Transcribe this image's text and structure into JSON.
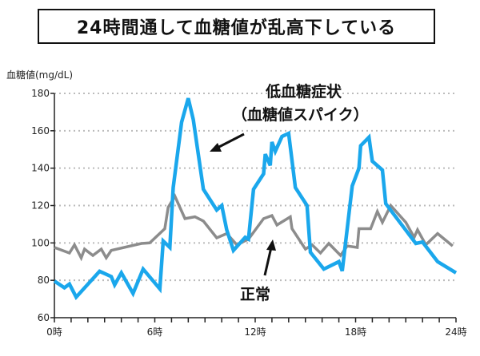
{
  "chart_data": {
    "type": "line",
    "title": "24時間通して血糖値が乱高下している",
    "ylabel": "血糖値(mg/dL)",
    "xlabel": "",
    "xlim": [
      0,
      24
    ],
    "ylim": [
      60,
      180
    ],
    "x_ticks": [
      {
        "value": 0,
        "label": "0時"
      },
      {
        "value": 6,
        "label": "6時"
      },
      {
        "value": 12,
        "label": "12時"
      },
      {
        "value": 18,
        "label": "18時"
      },
      {
        "value": 24,
        "label": "24時"
      }
    ],
    "y_ticks": [
      {
        "value": 60,
        "label": "60"
      },
      {
        "value": 80,
        "label": "80"
      },
      {
        "value": 100,
        "label": "100"
      },
      {
        "value": 120,
        "label": "120"
      },
      {
        "value": 140,
        "label": "140"
      },
      {
        "value": 160,
        "label": "160"
      },
      {
        "value": 180,
        "label": "180"
      }
    ],
    "grid": "horizontal dotted",
    "annotations": [
      {
        "text": "低血糖症状",
        "series": "spike"
      },
      {
        "text": "（血糖値スパイク）",
        "series": "spike"
      },
      {
        "text": "正常",
        "series": "normal"
      }
    ],
    "series": [
      {
        "id": "normal",
        "color": "#8c8c8c",
        "points": [
          [
            0,
            97.6
          ],
          [
            0.9,
            94.6
          ],
          [
            1.2,
            99
          ],
          [
            1.6,
            92
          ],
          [
            1.8,
            96.7
          ],
          [
            2.3,
            93.3
          ],
          [
            2.8,
            96.7
          ],
          [
            3.1,
            92
          ],
          [
            3.4,
            96
          ],
          [
            5.2,
            99.7
          ],
          [
            5.7,
            100
          ],
          [
            6.6,
            107.6
          ],
          [
            6.8,
            119
          ],
          [
            7.2,
            125
          ],
          [
            7.8,
            113
          ],
          [
            8.4,
            114
          ],
          [
            8.9,
            111.7
          ],
          [
            9.7,
            102.7
          ],
          [
            10.3,
            105
          ],
          [
            10.9,
            99
          ],
          [
            11.6,
            102
          ],
          [
            12.5,
            113
          ],
          [
            13.0,
            114.6
          ],
          [
            13.3,
            109.6
          ],
          [
            14.1,
            114
          ],
          [
            14.2,
            107.6
          ],
          [
            15.0,
            96.7
          ],
          [
            15.4,
            99
          ],
          [
            15.9,
            94.6
          ],
          [
            16.4,
            99.7
          ],
          [
            17.1,
            93.3
          ],
          [
            17.5,
            98.4
          ],
          [
            18.1,
            97.6
          ],
          [
            18.2,
            107.6
          ],
          [
            18.9,
            107.6
          ],
          [
            19.3,
            116.8
          ],
          [
            19.6,
            111
          ],
          [
            20.1,
            120
          ],
          [
            21.0,
            111
          ],
          [
            21.5,
            103
          ],
          [
            21.7,
            107
          ],
          [
            22.2,
            99
          ],
          [
            22.9,
            105
          ],
          [
            23.8,
            98.4
          ]
        ]
      },
      {
        "id": "spike",
        "color": "#1aa7ec",
        "points": [
          [
            0,
            79.6
          ],
          [
            0.6,
            76
          ],
          [
            0.9,
            78
          ],
          [
            1.3,
            71
          ],
          [
            2.7,
            84.8
          ],
          [
            3.4,
            82
          ],
          [
            3.6,
            77.6
          ],
          [
            4.0,
            84
          ],
          [
            4.7,
            73
          ],
          [
            5.3,
            86
          ],
          [
            6.3,
            75.4
          ],
          [
            6.5,
            101
          ],
          [
            6.9,
            97.6
          ],
          [
            7.1,
            129.6
          ],
          [
            7.6,
            164.6
          ],
          [
            8.0,
            177.4
          ],
          [
            8.3,
            166
          ],
          [
            8.9,
            128.7
          ],
          [
            9.7,
            117.6
          ],
          [
            10.0,
            120
          ],
          [
            10.3,
            107
          ],
          [
            10.7,
            96
          ],
          [
            11.4,
            103
          ],
          [
            11.6,
            102
          ],
          [
            11.9,
            128.7
          ],
          [
            12.5,
            137
          ],
          [
            12.6,
            147.5
          ],
          [
            12.9,
            141.5
          ],
          [
            13.0,
            154
          ],
          [
            13.2,
            149
          ],
          [
            13.6,
            157
          ],
          [
            14.0,
            158.6
          ],
          [
            14.4,
            129.6
          ],
          [
            15.1,
            120
          ],
          [
            15.3,
            95
          ],
          [
            16.1,
            86
          ],
          [
            17.0,
            90
          ],
          [
            17.2,
            85
          ],
          [
            17.8,
            130.5
          ],
          [
            18.2,
            140
          ],
          [
            18.3,
            152
          ],
          [
            18.8,
            156.5
          ],
          [
            19.0,
            143.7
          ],
          [
            19.6,
            139
          ],
          [
            19.8,
            121
          ],
          [
            21.6,
            99.7
          ],
          [
            22.0,
            100.5
          ],
          [
            22.9,
            90
          ],
          [
            24.0,
            84
          ]
        ]
      }
    ]
  }
}
